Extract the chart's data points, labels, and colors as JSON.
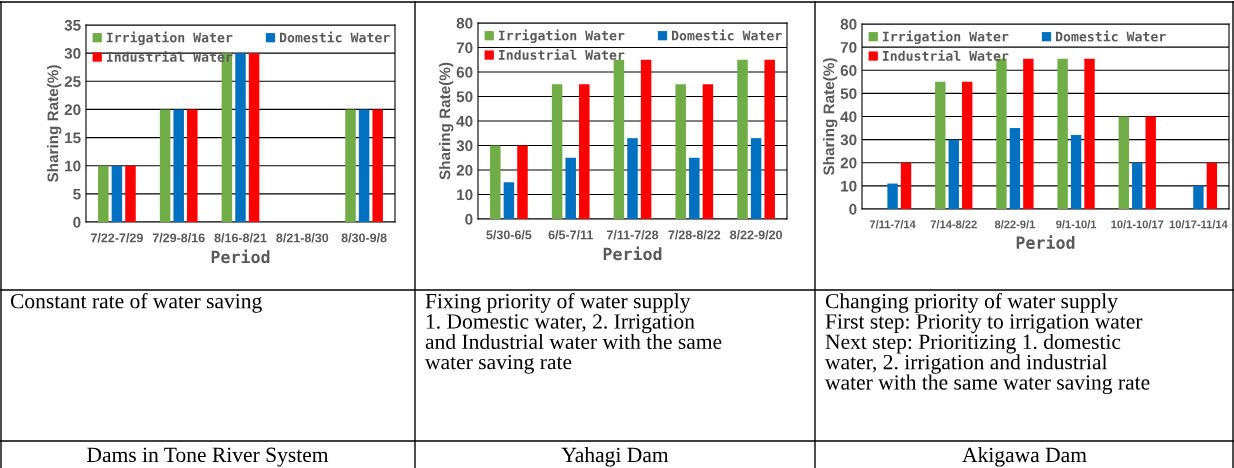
{
  "chart_data": [
    {
      "type": "bar",
      "xlabel": "Period",
      "ylabel": "Sharing Rate(%)",
      "categories": [
        "7/22-7/29",
        "7/29-8/16",
        "8/16-8/21",
        "8/21-8/30",
        "8/30-9/8"
      ],
      "series": [
        {
          "name": "Irrigation Water",
          "color": "#70ad47",
          "values": [
            10,
            20,
            30,
            null,
            20
          ]
        },
        {
          "name": "Domestic Water",
          "color": "#0070c0",
          "values": [
            10,
            20,
            30,
            null,
            20
          ]
        },
        {
          "name": "Industrial Water",
          "color": "#ff0000",
          "values": [
            10,
            20,
            30,
            null,
            20
          ]
        }
      ],
      "ylim": [
        0,
        35
      ],
      "yticks": [
        0,
        5,
        10,
        15,
        20,
        25,
        30,
        35
      ],
      "grid": "y",
      "legend": "top",
      "annotations": [
        "Constant rate of water saving",
        "Dams in Tone River System"
      ]
    },
    {
      "type": "bar",
      "xlabel": "Period",
      "ylabel": "Sharing Rate(%)",
      "categories": [
        "5/30-6/5",
        "6/5-7/11",
        "7/11-7/28",
        "7/28-8/22",
        "8/22-9/20"
      ],
      "series": [
        {
          "name": "Irrigation Water",
          "color": "#70ad47",
          "values": [
            30,
            55,
            65,
            55,
            65
          ]
        },
        {
          "name": "Domestic Water",
          "color": "#0070c0",
          "values": [
            15,
            25,
            33,
            25,
            33
          ]
        },
        {
          "name": "Industrial Water",
          "color": "#ff0000",
          "values": [
            30,
            55,
            65,
            55,
            65
          ]
        }
      ],
      "ylim": [
        0,
        80
      ],
      "yticks": [
        0,
        10,
        20,
        30,
        40,
        50,
        60,
        70,
        80
      ],
      "grid": "y",
      "legend": "top",
      "annotations": [
        "Fixing priority of water supply\n1. Domestic water, 2. Irrigation\nand Industrial water with the same\nwater saving rate",
        "Yahagi Dam"
      ]
    },
    {
      "type": "bar",
      "xlabel": "Period",
      "ylabel": "Sharing Rate(%)",
      "categories": [
        "7/11-7/14",
        "7/14-8/22",
        "8/22-9/1",
        "9/1-10/1",
        "10/1-10/17",
        "10/17-11/14"
      ],
      "series": [
        {
          "name": "Irrigation Water",
          "color": "#70ad47",
          "values": [
            null,
            55,
            65,
            65,
            40,
            null
          ]
        },
        {
          "name": "Domestic Water",
          "color": "#0070c0",
          "values": [
            11,
            30,
            35,
            32,
            20,
            10
          ]
        },
        {
          "name": "Industrial Water",
          "color": "#ff0000",
          "values": [
            20,
            55,
            65,
            65,
            40,
            20
          ]
        }
      ],
      "ylim": [
        0,
        80
      ],
      "yticks": [
        0,
        10,
        20,
        30,
        40,
        50,
        60,
        70,
        80
      ],
      "grid": "y",
      "legend": "top",
      "annotations": [
        "Changing priority of water supply\nFirst step: Priority to irrigation water\nNext step: Prioritizing 1. domestic\nwater, 2. irrigation and industrial\nwater with the same water saving rate",
        "Akigawa Dam"
      ]
    }
  ]
}
